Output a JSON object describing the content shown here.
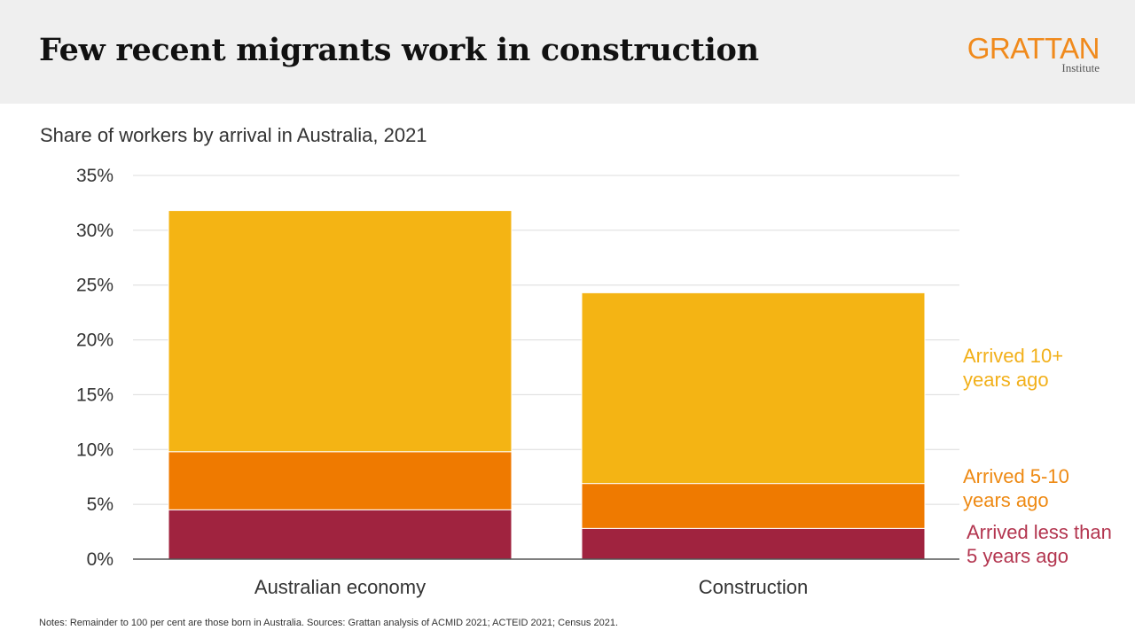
{
  "header": {
    "title": "Few recent migrants work in construction",
    "logo_main": "GRATTAN",
    "logo_sub": "Institute"
  },
  "notes": "Notes: Remainder to 100 per cent are those born in Australia. Sources: Grattan analysis of ACMID 2021; ACTEID 2021; Census 2021.",
  "chart_data": {
    "type": "bar",
    "stacked": true,
    "subtitle": "Share of workers by arrival in Australia, 2021",
    "categories": [
      "Australian economy",
      "Construction"
    ],
    "series": [
      {
        "name": "Arrived less than 5 years ago",
        "label_lines": [
          "Arrived less than",
          "5 years ago"
        ],
        "color": "#a0233f",
        "values": [
          4.5,
          2.8
        ]
      },
      {
        "name": "Arrived 5-10 years ago",
        "label_lines": [
          "Arrived 5-10",
          "years ago"
        ],
        "color": "#ef7a00",
        "values": [
          5.3,
          4.1
        ]
      },
      {
        "name": "Arrived 10+ years ago",
        "label_lines": [
          "Arrived 10+",
          "years ago"
        ],
        "color": "#f4b414",
        "values": [
          22.0,
          17.4
        ]
      }
    ],
    "ylim": [
      0,
      35
    ],
    "yticks": [
      0,
      5,
      10,
      15,
      20,
      25,
      30,
      35
    ],
    "ytick_labels": [
      "0%",
      "5%",
      "10%",
      "15%",
      "20%",
      "25%",
      "30%",
      "35%"
    ],
    "grid": true,
    "legend_placement": "right of bars, direct labels",
    "xlabel": "",
    "ylabel": ""
  }
}
